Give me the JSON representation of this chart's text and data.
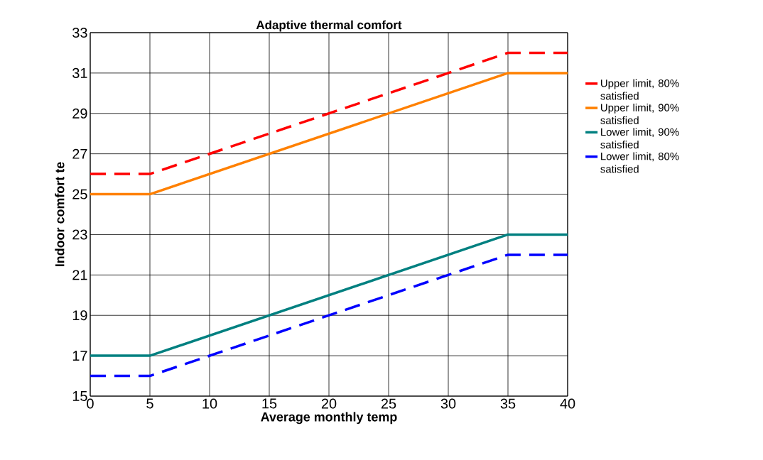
{
  "chart_data": {
    "type": "line",
    "title": "Adaptive thermal comfort",
    "xlabel": "Average monthly temp",
    "ylabel": "Indoor comfort te",
    "x": [
      0,
      5,
      35,
      40
    ],
    "series": [
      {
        "name": "Upper limit, 80% satisfied",
        "color": "#ff0000",
        "line_style": "dashed",
        "values": [
          26,
          26,
          32,
          32
        ]
      },
      {
        "name": "Upper limit, 90% satisfied",
        "color": "#ff8000",
        "line_style": "solid",
        "values": [
          25,
          25,
          31,
          31
        ]
      },
      {
        "name": "Lower limit, 90% satisfied",
        "color": "#008080",
        "line_style": "solid",
        "values": [
          17,
          17,
          23,
          23
        ]
      },
      {
        "name": "Lower limit, 80% satisfied",
        "color": "#0000ff",
        "line_style": "dashed",
        "values": [
          16,
          16,
          22,
          22
        ]
      }
    ],
    "xlim": [
      0,
      40
    ],
    "xticks": [
      0,
      5,
      10,
      15,
      20,
      25,
      30,
      35,
      40
    ],
    "ylim": [
      15,
      33
    ],
    "yticks": [
      15,
      17,
      19,
      21,
      23,
      25,
      27,
      29,
      31,
      33
    ],
    "grid": true,
    "legend": "right",
    "marker": "none"
  }
}
